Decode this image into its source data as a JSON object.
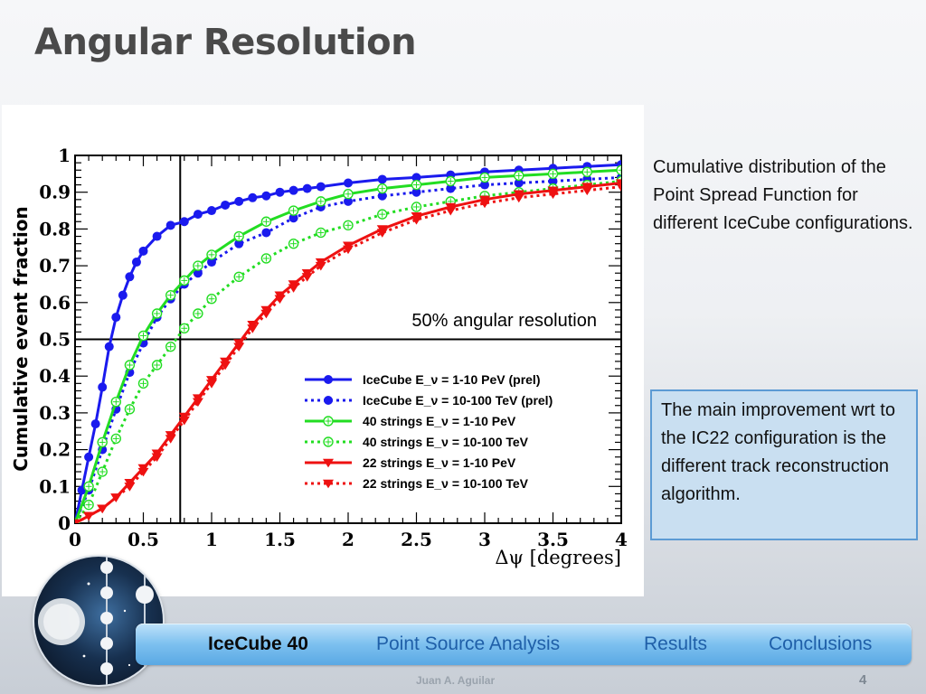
{
  "slide": {
    "title": "Angular Resolution",
    "description": "Cumulative distribution of the Point Spread Function for different IceCube configurations.",
    "note": "The main improvement wrt to the IC22 configuration is the different track reconstruction algorithm.",
    "author": "Juan A. Aguilar",
    "page_number": "4"
  },
  "nav": {
    "items": [
      {
        "label": "IceCube 40",
        "active": true
      },
      {
        "label": "Point Source Analysis",
        "active": false
      },
      {
        "label": "Results",
        "active": false
      },
      {
        "label": "Conclusions",
        "active": false
      }
    ]
  },
  "icons": {
    "logo": "icecube-detector-logo"
  },
  "chart_data": {
    "type": "line",
    "xlabel": "Δψ [degrees]",
    "ylabel": "Cumulative event fraction",
    "xlim": [
      0,
      4
    ],
    "ylim": [
      0,
      1
    ],
    "x_ticks": [
      "0",
      "0.5",
      "1",
      "1.5",
      "2",
      "2.5",
      "3",
      "3.5",
      "4"
    ],
    "y_ticks": [
      "0",
      "0.1",
      "0.2",
      "0.3",
      "0.4",
      "0.5",
      "0.6",
      "0.7",
      "0.8",
      "0.9",
      "1"
    ],
    "grid": false,
    "legend_position": "bottom-right",
    "annotation": "50% angular resolution",
    "reference_lines": {
      "vertical_x": 0.77,
      "horizontal_y": 0.5
    },
    "series": [
      {
        "name": "IceCube E_ν = 1-10 PeV (prel)",
        "color": "#1a1aee",
        "dashed": false,
        "marker": "circle-filled",
        "x": [
          0,
          0.05,
          0.1,
          0.15,
          0.2,
          0.25,
          0.3,
          0.35,
          0.4,
          0.45,
          0.5,
          0.6,
          0.7,
          0.8,
          0.9,
          1,
          1.1,
          1.2,
          1.3,
          1.4,
          1.5,
          1.6,
          1.7,
          1.8,
          2,
          2.25,
          2.5,
          2.75,
          3,
          3.25,
          3.5,
          3.75,
          4
        ],
        "y": [
          0,
          0.09,
          0.18,
          0.27,
          0.37,
          0.48,
          0.56,
          0.62,
          0.67,
          0.71,
          0.74,
          0.78,
          0.81,
          0.82,
          0.84,
          0.85,
          0.865,
          0.875,
          0.885,
          0.89,
          0.9,
          0.905,
          0.91,
          0.915,
          0.925,
          0.935,
          0.94,
          0.947,
          0.955,
          0.96,
          0.965,
          0.97,
          0.975
        ]
      },
      {
        "name": "IceCube E_ν = 10-100 TeV (prel)",
        "color": "#1a1aee",
        "dashed": true,
        "marker": "circle-filled",
        "x": [
          0,
          0.1,
          0.2,
          0.3,
          0.4,
          0.5,
          0.6,
          0.7,
          0.8,
          0.9,
          1,
          1.2,
          1.4,
          1.6,
          1.8,
          2,
          2.25,
          2.5,
          2.75,
          3,
          3.25,
          3.5,
          3.75,
          4
        ],
        "y": [
          0,
          0.09,
          0.2,
          0.31,
          0.41,
          0.49,
          0.56,
          0.61,
          0.65,
          0.68,
          0.71,
          0.76,
          0.79,
          0.83,
          0.86,
          0.875,
          0.89,
          0.9,
          0.91,
          0.92,
          0.925,
          0.93,
          0.935,
          0.94
        ]
      },
      {
        "name": "40 strings E_ν = 1-10 PeV",
        "color": "#22dd22",
        "dashed": false,
        "marker": "circle-open",
        "x": [
          0,
          0.1,
          0.2,
          0.3,
          0.4,
          0.5,
          0.6,
          0.7,
          0.8,
          0.9,
          1,
          1.2,
          1.4,
          1.6,
          1.8,
          2,
          2.25,
          2.5,
          2.75,
          3,
          3.25,
          3.5,
          3.75,
          4
        ],
        "y": [
          0,
          0.1,
          0.22,
          0.33,
          0.43,
          0.51,
          0.57,
          0.62,
          0.66,
          0.7,
          0.73,
          0.78,
          0.82,
          0.85,
          0.875,
          0.895,
          0.91,
          0.92,
          0.93,
          0.94,
          0.945,
          0.95,
          0.955,
          0.96
        ]
      },
      {
        "name": "40 strings E_ν = 10-100 TeV",
        "color": "#22dd22",
        "dashed": true,
        "marker": "circle-open",
        "x": [
          0,
          0.1,
          0.2,
          0.3,
          0.4,
          0.5,
          0.6,
          0.7,
          0.8,
          0.9,
          1,
          1.2,
          1.4,
          1.6,
          1.8,
          2,
          2.25,
          2.5,
          2.75,
          3,
          3.25,
          3.5,
          3.75,
          4
        ],
        "y": [
          0,
          0.05,
          0.14,
          0.23,
          0.31,
          0.38,
          0.43,
          0.48,
          0.53,
          0.57,
          0.61,
          0.67,
          0.72,
          0.76,
          0.79,
          0.81,
          0.84,
          0.86,
          0.875,
          0.89,
          0.9,
          0.91,
          0.92,
          0.93
        ]
      },
      {
        "name": "22 strings E_ν = 1-10 PeV",
        "color": "#ee1111",
        "dashed": false,
        "marker": "triangle-down",
        "x": [
          0,
          0.1,
          0.2,
          0.3,
          0.4,
          0.5,
          0.6,
          0.7,
          0.8,
          0.9,
          1,
          1.1,
          1.2,
          1.3,
          1.4,
          1.5,
          1.6,
          1.7,
          1.8,
          2,
          2.25,
          2.5,
          2.75,
          3,
          3.25,
          3.5,
          3.75,
          4
        ],
        "y": [
          0,
          0.02,
          0.04,
          0.07,
          0.11,
          0.15,
          0.19,
          0.24,
          0.29,
          0.34,
          0.39,
          0.44,
          0.49,
          0.54,
          0.58,
          0.62,
          0.65,
          0.68,
          0.71,
          0.755,
          0.8,
          0.835,
          0.86,
          0.88,
          0.895,
          0.905,
          0.915,
          0.925
        ]
      },
      {
        "name": "22 strings E_ν = 10-100 TeV",
        "color": "#ee1111",
        "dashed": true,
        "marker": "triangle-down",
        "x": [
          0,
          0.1,
          0.2,
          0.3,
          0.4,
          0.5,
          0.6,
          0.7,
          0.8,
          0.9,
          1,
          1.1,
          1.2,
          1.3,
          1.4,
          1.5,
          1.6,
          1.7,
          1.8,
          2,
          2.25,
          2.5,
          2.75,
          3,
          3.25,
          3.5,
          3.75,
          4
        ],
        "y": [
          0,
          0.02,
          0.04,
          0.07,
          0.1,
          0.14,
          0.18,
          0.23,
          0.28,
          0.33,
          0.38,
          0.43,
          0.48,
          0.53,
          0.57,
          0.61,
          0.64,
          0.67,
          0.7,
          0.745,
          0.79,
          0.825,
          0.85,
          0.87,
          0.885,
          0.895,
          0.905,
          0.915
        ]
      }
    ]
  }
}
